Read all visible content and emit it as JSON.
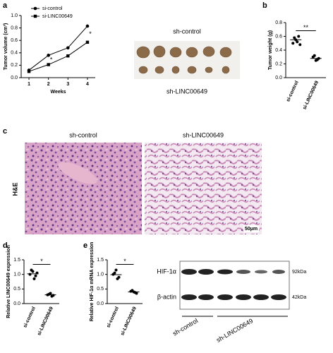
{
  "chart_data": [
    {
      "type": "line",
      "panel": "a",
      "x_label": "Weeks",
      "y_label": "Tumor volume (cm³)",
      "x": [
        1,
        2,
        3,
        4
      ],
      "xlim": [
        0.6,
        4.4
      ],
      "xticks": [
        1,
        2,
        3,
        4
      ],
      "ylim": [
        0,
        1.0
      ],
      "yticks": [
        {
          "value": 0,
          "label": "0.0"
        },
        {
          "value": 0.2,
          "label": "0.2"
        },
        {
          "value": 0.4,
          "label": "0.4"
        },
        {
          "value": 0.6,
          "label": "0.6"
        },
        {
          "value": 0.8,
          "label": "0.8"
        },
        {
          "value": 1.0,
          "label": "1.0"
        }
      ],
      "legend": "upper left",
      "series": [
        {
          "name": "si-control",
          "color": "#000000",
          "marker": "circle",
          "values": [
            0.12,
            0.36,
            0.48,
            0.83
          ]
        },
        {
          "name": "si-LINC00649",
          "color": "#000000",
          "marker": "square",
          "values": [
            0.1,
            0.21,
            0.35,
            0.57
          ]
        }
      ],
      "annotations": [
        {
          "text": "*",
          "x": 2
        },
        {
          "text": "*",
          "x": 4
        }
      ]
    },
    {
      "type": "dot",
      "panel": "b",
      "y_label": "Tumor weight (g)",
      "categories": [
        "si-control",
        "si-LINC00649"
      ],
      "ylim": [
        0,
        0.8
      ],
      "yticks": [
        {
          "value": 0,
          "label": "0.0"
        },
        {
          "value": 0.2,
          "label": "0.2"
        },
        {
          "value": 0.4,
          "label": "0.4"
        },
        {
          "value": 0.6,
          "label": "0.6"
        },
        {
          "value": 0.8,
          "label": "0.8"
        }
      ],
      "points": [
        [
          0.5,
          0.55,
          0.6,
          0.58,
          0.52,
          0.48
        ],
        [
          0.3,
          0.25,
          0.28,
          0.32,
          0.26
        ]
      ],
      "means": [
        0.55,
        0.28
      ],
      "significance": "**"
    },
    {
      "type": "dot",
      "panel": "d",
      "y_label": "Relative LINC00649 expression",
      "categories": [
        "si-control",
        "si-LINC00649"
      ],
      "ylim": [
        0,
        1.5
      ],
      "yticks": [
        {
          "value": 0,
          "label": "0.0"
        },
        {
          "value": 0.5,
          "label": "0.5"
        },
        {
          "value": 1.0,
          "label": "1.0"
        },
        {
          "value": 1.5,
          "label": "1.5"
        }
      ],
      "points": [
        [
          1.0,
          1.1,
          0.95,
          1.15,
          0.85,
          1.05
        ],
        [
          0.3,
          0.35,
          0.28,
          0.32,
          0.25
        ]
      ],
      "means": [
        1.02,
        0.3
      ],
      "significance": "*"
    },
    {
      "type": "dot",
      "panel": "e",
      "y_label": "Relative HIF-1α mRNA expression",
      "categories": [
        "si-control",
        "si-LINC00649"
      ],
      "ylim": [
        0,
        1.5
      ],
      "yticks": [
        {
          "value": 0,
          "label": "0.0"
        },
        {
          "value": 0.5,
          "label": "0.5"
        },
        {
          "value": 1.0,
          "label": "1.0"
        },
        {
          "value": 1.5,
          "label": "1.5"
        }
      ],
      "points": [
        [
          1.0,
          1.15,
          0.9,
          1.05,
          0.85
        ],
        [
          0.42,
          0.4,
          0.35,
          0.45,
          0.38
        ]
      ],
      "means": [
        0.99,
        0.4
      ],
      "significance": "*"
    }
  ],
  "tumor_image": {
    "top_label": "sh-control",
    "bottom_label": "sh-LINC00649"
  },
  "histology": {
    "panel": "c",
    "left_label": "sh-control",
    "right_label": "sh-LINC00649",
    "stain": "H&E",
    "scale_bar": "50μm"
  },
  "western_blot": {
    "rows": [
      "HIF-1α",
      "β-actin"
    ],
    "sizes": [
      "92kDa",
      "42kDa"
    ],
    "groups": [
      "sh-control",
      "sh-LINC00649"
    ]
  }
}
